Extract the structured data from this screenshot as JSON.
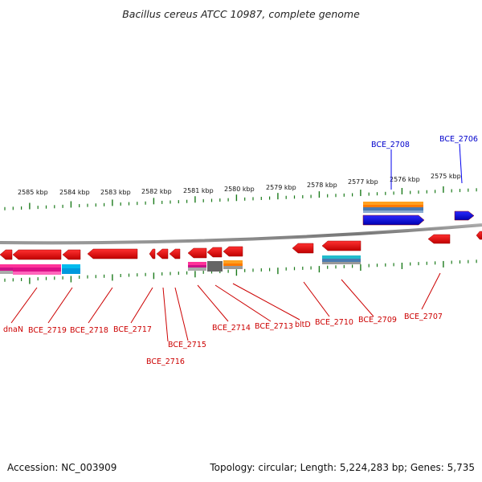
{
  "title": "Bacillus cereus ATCC 10987, complete genome",
  "footer": {
    "accession": "Accession: NC_003909",
    "summary": "Topology: circular; Length: 5,224,283 bp; Genes: 5,735"
  },
  "colors": {
    "forward_gene": "#ff0000",
    "reverse_gene": "#e60000",
    "highlight_gene": "#0000ee",
    "highlight_label": "#0000cc",
    "gene_label": "#cc0000",
    "ruler_tick": "#1a7a1a",
    "backbone": "#8a8a8a"
  },
  "scale": {
    "unit": "kbp",
    "ticks": [
      "2585 kbp",
      "2584 kbp",
      "2583 kbp",
      "2582 kbp",
      "2581 kbp",
      "2580 kbp",
      "2579 kbp",
      "2578 kbp",
      "2577 kbp",
      "2576 kbp",
      "2575 kbp"
    ]
  },
  "top_labels": [
    "BCE_2708",
    "BCE_2706"
  ],
  "bottom_labels": [
    "dnaN",
    "BCE_2719",
    "BCE_2718",
    "BCE_2717",
    "BCE_2716",
    "BCE_2715",
    "BCE_2714",
    "BCE_2713",
    "bltD",
    "BCE_2710",
    "BCE_2709",
    "BCE_2707"
  ]
}
